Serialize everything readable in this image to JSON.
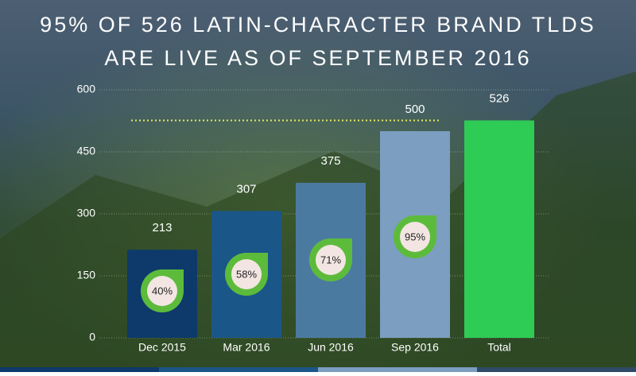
{
  "chart_data": {
    "type": "bar",
    "title": [
      "95% OF 526 LATIN-CHARACTER BRAND TLDS",
      "ARE LIVE AS OF SEPTEMBER 2016"
    ],
    "categories": [
      "Dec 2015",
      "Mar 2016",
      "Jun 2016",
      "Sep 2016",
      "Total"
    ],
    "values": [
      213,
      307,
      375,
      500,
      526
    ],
    "colors": [
      "#0d3a6b",
      "#1b5688",
      "#4b7aa1",
      "#7c9ec0",
      "#2ecc55"
    ],
    "share_labels": [
      "40%",
      "58%",
      "71%",
      "95%"
    ],
    "badge_color": "#5dbb3c",
    "reference_color": "#e4e85a",
    "ylim": [
      0,
      600
    ],
    "yticks": [
      0,
      150,
      300,
      450,
      600
    ],
    "grid": true
  }
}
